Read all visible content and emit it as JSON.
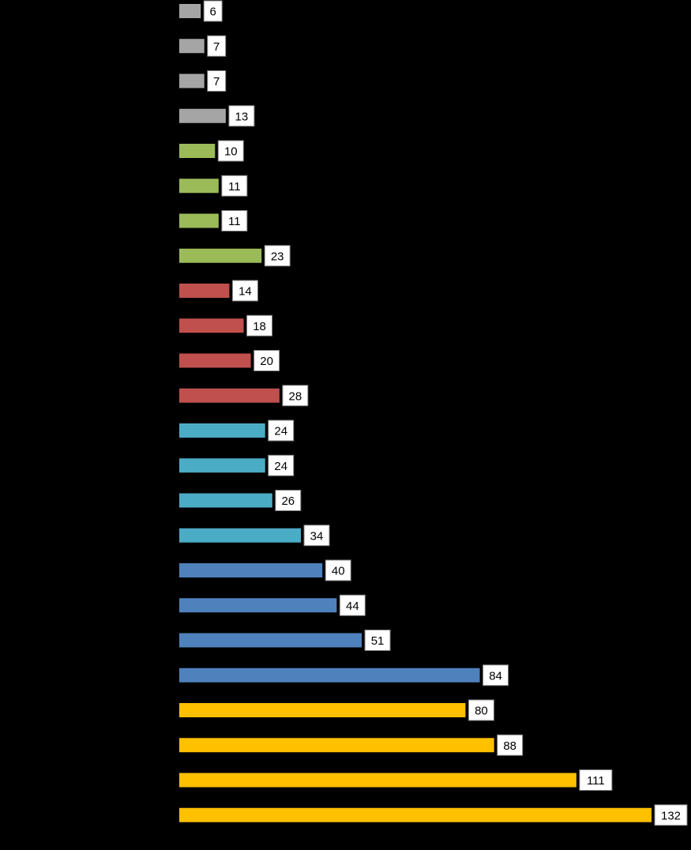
{
  "chart_data": {
    "type": "bar",
    "orientation": "horizontal",
    "title": "",
    "xlabel": "",
    "ylabel": "",
    "xlim": [
      0,
      132
    ],
    "grid": false,
    "legend": "none",
    "data_labels": true,
    "values": [
      6,
      7,
      7,
      13,
      10,
      11,
      11,
      23,
      14,
      18,
      20,
      28,
      24,
      24,
      26,
      34,
      40,
      44,
      51,
      84,
      80,
      88,
      111,
      132
    ],
    "bar_colors": [
      "#a5a5a5",
      "#a5a5a5",
      "#a5a5a5",
      "#a5a5a5",
      "#9bbb59",
      "#9bbb59",
      "#9bbb59",
      "#9bbb59",
      "#c0504d",
      "#c0504d",
      "#c0504d",
      "#c0504d",
      "#4bacc6",
      "#4bacc6",
      "#4bacc6",
      "#4bacc6",
      "#4f81bd",
      "#4f81bd",
      "#4f81bd",
      "#4f81bd",
      "#ffc000",
      "#ffc000",
      "#ffc000",
      "#ffc000"
    ]
  },
  "colors": {
    "background": "#000000",
    "label_box_fill": "#ffffff",
    "label_box_stroke": "#7f7f7f",
    "label_text": "#000000"
  }
}
